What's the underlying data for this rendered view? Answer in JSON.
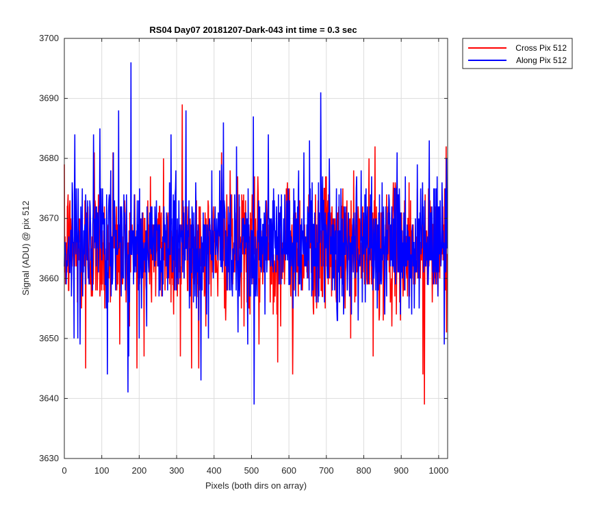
{
  "chart_data": {
    "type": "line",
    "title": "RS04 Day07 20181207-Dark-043 int time = 0.3 sec",
    "xlabel": "Pixels (both dirs on array)",
    "ylabel": "Signal (ADU) @ pix 512",
    "xlim": [
      0,
      1024
    ],
    "ylim": [
      3630,
      3700
    ],
    "xticks": [
      0,
      100,
      200,
      300,
      400,
      500,
      600,
      700,
      800,
      900,
      1000
    ],
    "yticks": [
      3630,
      3640,
      3650,
      3660,
      3670,
      3680,
      3690,
      3700
    ],
    "grid": true,
    "legend_position": "outside-top-right",
    "n_points": 1024,
    "series": [
      {
        "name": "Cross Pix 512",
        "color": "#ff0000",
        "mean": 3665,
        "min_observed": 3639,
        "max_observed": 3689,
        "peaks": [
          [
            10,
            3674
          ],
          [
            57,
            3645
          ],
          [
            80,
            3681
          ],
          [
            130,
            3681
          ],
          [
            148,
            3649
          ],
          [
            213,
            3647
          ],
          [
            265,
            3680
          ],
          [
            310,
            3647
          ],
          [
            315,
            3689
          ],
          [
            340,
            3645
          ],
          [
            420,
            3681
          ],
          [
            520,
            3649
          ],
          [
            570,
            3646
          ],
          [
            610,
            3644
          ],
          [
            700,
            3677
          ],
          [
            825,
            3647
          ],
          [
            830,
            3682
          ],
          [
            958,
            3644
          ],
          [
            962,
            3639
          ],
          [
            1020,
            3682
          ]
        ]
      },
      {
        "name": "Along Pix 512",
        "color": "#0000ff",
        "mean": 3666,
        "min_observed": 3639,
        "max_observed": 3696,
        "peaks": [
          [
            5,
            3659
          ],
          [
            28,
            3684
          ],
          [
            42,
            3649
          ],
          [
            95,
            3685
          ],
          [
            115,
            3644
          ],
          [
            145,
            3688
          ],
          [
            170,
            3641
          ],
          [
            178,
            3696
          ],
          [
            200,
            3650
          ],
          [
            285,
            3684
          ],
          [
            325,
            3688
          ],
          [
            365,
            3643
          ],
          [
            385,
            3650
          ],
          [
            425,
            3686
          ],
          [
            460,
            3682
          ],
          [
            490,
            3649
          ],
          [
            505,
            3687
          ],
          [
            507,
            3639
          ],
          [
            545,
            3684
          ],
          [
            640,
            3681
          ],
          [
            655,
            3683
          ],
          [
            685,
            3691
          ],
          [
            730,
            3653
          ],
          [
            785,
            3653
          ],
          [
            975,
            3683
          ],
          [
            1015,
            3649
          ]
        ]
      }
    ]
  }
}
